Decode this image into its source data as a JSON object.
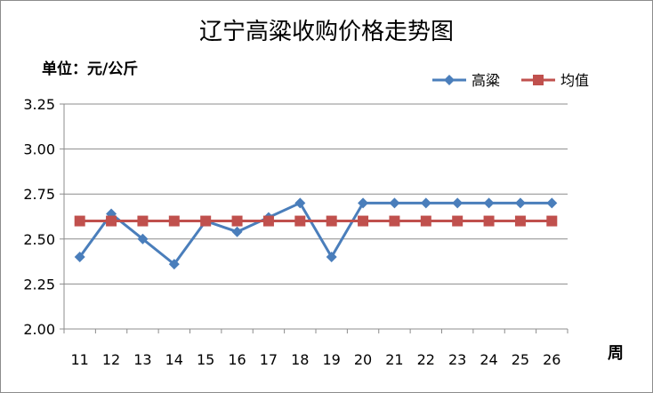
{
  "chart_data": {
    "type": "line",
    "title": "辽宁高粱收购价格走势图",
    "ylabel": "单位：元/公斤",
    "xlabel": "周",
    "categories": [
      "11",
      "12",
      "13",
      "14",
      "15",
      "16",
      "17",
      "18",
      "19",
      "20",
      "21",
      "22",
      "23",
      "24",
      "25",
      "26"
    ],
    "ylim": [
      2.0,
      3.25
    ],
    "yticks": [
      "2.00",
      "2.25",
      "2.50",
      "2.75",
      "3.00",
      "3.25"
    ],
    "grid": true,
    "legend_position": "top-right",
    "series": [
      {
        "name": "高粱",
        "color": "#4a7ebb",
        "marker": "diamond",
        "values": [
          2.4,
          2.64,
          2.5,
          2.36,
          2.6,
          2.54,
          2.62,
          2.7,
          2.4,
          2.7,
          2.7,
          2.7,
          2.7,
          2.7,
          2.7,
          2.7
        ]
      },
      {
        "name": "均值",
        "color": "#c0504d",
        "marker": "square",
        "values": [
          2.6,
          2.6,
          2.6,
          2.6,
          2.6,
          2.6,
          2.6,
          2.6,
          2.6,
          2.6,
          2.6,
          2.6,
          2.6,
          2.6,
          2.6,
          2.6
        ]
      }
    ]
  }
}
